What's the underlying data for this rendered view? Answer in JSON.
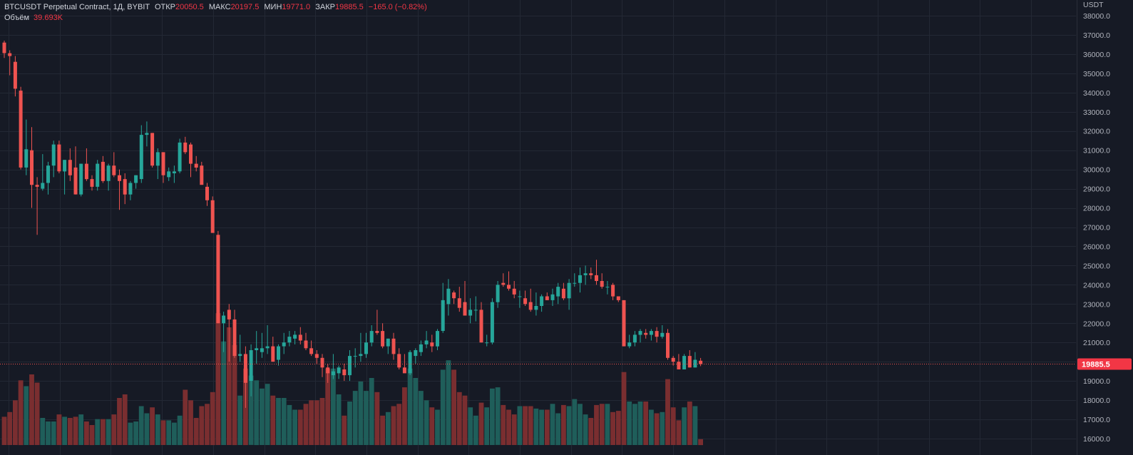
{
  "legend": {
    "symbol": "BTCUSDT Perpetual Contract, 1Д, BYBIT",
    "open_label": "ОТКР",
    "open": "20050.5",
    "high_label": "МАКС",
    "high": "20197.5",
    "low_label": "МИН",
    "low": "19771.0",
    "close_label": "ЗАКР",
    "close": "19885.5",
    "change": "−165.0 (−0.82%)",
    "volume_label": "Объём",
    "volume": "39.693K"
  },
  "axis_unit": "USDT",
  "colors": {
    "background": "#161a25",
    "grid": "#232834",
    "up": "#26a69a",
    "down": "#ef5350",
    "vol_up": "#1f5e5a",
    "vol_down": "#7a2e30",
    "axis_text": "#b2b5be",
    "price_line": "#ef5350"
  },
  "chart_data": {
    "type": "candlestick",
    "interval": "1D",
    "y_axis": {
      "min": 16000,
      "max": 38000,
      "step": 1000,
      "ticks": [
        "16000.0",
        "17000.0",
        "18000.0",
        "19000.0",
        "20000.0",
        "21000.0",
        "22000.0",
        "23000.0",
        "24000.0",
        "25000.0",
        "26000.0",
        "27000.0",
        "28000.0",
        "29000.0",
        "30000.0",
        "31000.0",
        "32000.0",
        "33000.0",
        "34000.0",
        "35000.0",
        "36000.0",
        "37000.0",
        "38000.0"
      ]
    },
    "last_price": "19885.5",
    "volume_scale": [
      0,
      1.0
    ],
    "candles": [
      {
        "o": 36600,
        "h": 36700,
        "l": 35800,
        "c": 36050,
        "v": 0.24
      },
      {
        "o": 36050,
        "h": 36200,
        "l": 34900,
        "c": 35900,
        "v": 0.28
      },
      {
        "o": 35600,
        "h": 35900,
        "l": 33800,
        "c": 34200,
        "v": 0.38
      },
      {
        "o": 34100,
        "h": 34300,
        "l": 30000,
        "c": 30100,
        "v": 0.55
      },
      {
        "o": 30100,
        "h": 32600,
        "l": 29700,
        "c": 31050,
        "v": 0.5
      },
      {
        "o": 31000,
        "h": 32200,
        "l": 28000,
        "c": 29200,
        "v": 0.6
      },
      {
        "o": 29200,
        "h": 29600,
        "l": 26600,
        "c": 29100,
        "v": 0.53
      },
      {
        "o": 29000,
        "h": 30800,
        "l": 28900,
        "c": 29300,
        "v": 0.23
      },
      {
        "o": 29300,
        "h": 30400,
        "l": 28700,
        "c": 30200,
        "v": 0.2
      },
      {
        "o": 30200,
        "h": 31500,
        "l": 29600,
        "c": 31300,
        "v": 0.2
      },
      {
        "o": 31300,
        "h": 31500,
        "l": 29800,
        "c": 29900,
        "v": 0.26
      },
      {
        "o": 29900,
        "h": 30500,
        "l": 28700,
        "c": 30500,
        "v": 0.24
      },
      {
        "o": 30500,
        "h": 31100,
        "l": 29400,
        "c": 29700,
        "v": 0.23
      },
      {
        "o": 30100,
        "h": 31200,
        "l": 28700,
        "c": 28700,
        "v": 0.24
      },
      {
        "o": 28700,
        "h": 30300,
        "l": 28600,
        "c": 30300,
        "v": 0.26
      },
      {
        "o": 30300,
        "h": 31100,
        "l": 29400,
        "c": 29500,
        "v": 0.2
      },
      {
        "o": 29500,
        "h": 29700,
        "l": 28900,
        "c": 29100,
        "v": 0.17
      },
      {
        "o": 29100,
        "h": 30500,
        "l": 28900,
        "c": 30300,
        "v": 0.22
      },
      {
        "o": 30400,
        "h": 30700,
        "l": 29300,
        "c": 29400,
        "v": 0.22
      },
      {
        "o": 29400,
        "h": 30300,
        "l": 28900,
        "c": 30200,
        "v": 0.22
      },
      {
        "o": 30200,
        "h": 30900,
        "l": 29600,
        "c": 29700,
        "v": 0.26
      },
      {
        "o": 29700,
        "h": 30000,
        "l": 27900,
        "c": 29400,
        "v": 0.4
      },
      {
        "o": 29500,
        "h": 29800,
        "l": 28200,
        "c": 28700,
        "v": 0.43
      },
      {
        "o": 28700,
        "h": 29400,
        "l": 28400,
        "c": 29300,
        "v": 0.19
      },
      {
        "o": 29300,
        "h": 29700,
        "l": 29000,
        "c": 29700,
        "v": 0.2
      },
      {
        "o": 29500,
        "h": 32300,
        "l": 29300,
        "c": 31800,
        "v": 0.33
      },
      {
        "o": 31800,
        "h": 32500,
        "l": 31200,
        "c": 31900,
        "v": 0.27
      },
      {
        "o": 31900,
        "h": 31900,
        "l": 30100,
        "c": 30200,
        "v": 0.32
      },
      {
        "o": 30200,
        "h": 31100,
        "l": 29500,
        "c": 30900,
        "v": 0.26
      },
      {
        "o": 30900,
        "h": 30900,
        "l": 29300,
        "c": 29700,
        "v": 0.21
      },
      {
        "o": 29600,
        "h": 30100,
        "l": 29400,
        "c": 29900,
        "v": 0.21
      },
      {
        "o": 29800,
        "h": 30200,
        "l": 29300,
        "c": 29900,
        "v": 0.19
      },
      {
        "o": 29900,
        "h": 31600,
        "l": 29800,
        "c": 31400,
        "v": 0.25
      },
      {
        "o": 31400,
        "h": 31700,
        "l": 30800,
        "c": 30900,
        "v": 0.47
      },
      {
        "o": 31300,
        "h": 31400,
        "l": 29600,
        "c": 30300,
        "v": 0.38
      },
      {
        "o": 30300,
        "h": 30700,
        "l": 29900,
        "c": 30100,
        "v": 0.23
      },
      {
        "o": 30200,
        "h": 30400,
        "l": 29300,
        "c": 29200,
        "v": 0.33
      },
      {
        "o": 29100,
        "h": 29300,
        "l": 28100,
        "c": 28400,
        "v": 0.35
      },
      {
        "o": 28400,
        "h": 28600,
        "l": 26700,
        "c": 26700,
        "v": 0.45
      },
      {
        "o": 26600,
        "h": 26800,
        "l": 22000,
        "c": 22000,
        "v": 1.12
      },
      {
        "o": 22000,
        "h": 22600,
        "l": 20500,
        "c": 22400,
        "v": 0.88
      },
      {
        "o": 22700,
        "h": 23000,
        "l": 20000,
        "c": 22200,
        "v": 1.0
      },
      {
        "o": 22200,
        "h": 22700,
        "l": 20200,
        "c": 20300,
        "v": 0.85
      },
      {
        "o": 20300,
        "h": 21400,
        "l": 20000,
        "c": 20400,
        "v": 0.42
      },
      {
        "o": 20400,
        "h": 20800,
        "l": 17600,
        "c": 18900,
        "v": 0.65
      },
      {
        "o": 19000,
        "h": 20900,
        "l": 18200,
        "c": 20600,
        "v": 0.59
      },
      {
        "o": 20600,
        "h": 21600,
        "l": 19900,
        "c": 20700,
        "v": 0.55
      },
      {
        "o": 20500,
        "h": 21500,
        "l": 20200,
        "c": 20700,
        "v": 0.48
      },
      {
        "o": 20700,
        "h": 21900,
        "l": 20400,
        "c": 20800,
        "v": 0.52
      },
      {
        "o": 20800,
        "h": 21300,
        "l": 20000,
        "c": 20000,
        "v": 0.42
      },
      {
        "o": 20100,
        "h": 20900,
        "l": 19800,
        "c": 20800,
        "v": 0.4
      },
      {
        "o": 20800,
        "h": 21500,
        "l": 20400,
        "c": 21000,
        "v": 0.4
      },
      {
        "o": 21000,
        "h": 21600,
        "l": 20800,
        "c": 21300,
        "v": 0.34
      },
      {
        "o": 21200,
        "h": 21600,
        "l": 20900,
        "c": 21400,
        "v": 0.3
      },
      {
        "o": 21400,
        "h": 21800,
        "l": 20900,
        "c": 21100,
        "v": 0.3
      },
      {
        "o": 21100,
        "h": 21500,
        "l": 20600,
        "c": 20700,
        "v": 0.35
      },
      {
        "o": 20700,
        "h": 21100,
        "l": 20300,
        "c": 20400,
        "v": 0.38
      },
      {
        "o": 20400,
        "h": 20600,
        "l": 19900,
        "c": 20200,
        "v": 0.38
      },
      {
        "o": 20200,
        "h": 20400,
        "l": 19200,
        "c": 19700,
        "v": 0.4
      },
      {
        "o": 19700,
        "h": 19900,
        "l": 18900,
        "c": 19400,
        "v": 0.65
      },
      {
        "o": 19300,
        "h": 20400,
        "l": 19100,
        "c": 19500,
        "v": 0.65
      },
      {
        "o": 19400,
        "h": 19800,
        "l": 19100,
        "c": 19700,
        "v": 0.43
      },
      {
        "o": 19600,
        "h": 19900,
        "l": 19000,
        "c": 19300,
        "v": 0.25
      },
      {
        "o": 19300,
        "h": 20600,
        "l": 19000,
        "c": 20300,
        "v": 0.37
      },
      {
        "o": 20300,
        "h": 20700,
        "l": 19700,
        "c": 20300,
        "v": 0.46
      },
      {
        "o": 20300,
        "h": 21500,
        "l": 20000,
        "c": 20400,
        "v": 0.54
      },
      {
        "o": 20400,
        "h": 21500,
        "l": 20200,
        "c": 21000,
        "v": 0.46
      },
      {
        "o": 21000,
        "h": 21900,
        "l": 20800,
        "c": 21600,
        "v": 0.57
      },
      {
        "o": 21600,
        "h": 22700,
        "l": 21400,
        "c": 21500,
        "v": 0.45
      },
      {
        "o": 21600,
        "h": 22000,
        "l": 20700,
        "c": 20800,
        "v": 0.25
      },
      {
        "o": 20800,
        "h": 21200,
        "l": 20400,
        "c": 21200,
        "v": 0.28
      },
      {
        "o": 21200,
        "h": 21500,
        "l": 20100,
        "c": 20400,
        "v": 0.33
      },
      {
        "o": 20400,
        "h": 20700,
        "l": 19600,
        "c": 19700,
        "v": 0.35
      },
      {
        "o": 19700,
        "h": 20400,
        "l": 19500,
        "c": 19400,
        "v": 0.49
      },
      {
        "o": 19400,
        "h": 20600,
        "l": 19300,
        "c": 20500,
        "v": 0.65
      },
      {
        "o": 20300,
        "h": 20700,
        "l": 19900,
        "c": 20600,
        "v": 0.57
      },
      {
        "o": 20500,
        "h": 21100,
        "l": 20300,
        "c": 20900,
        "v": 0.46
      },
      {
        "o": 20900,
        "h": 21600,
        "l": 20700,
        "c": 21100,
        "v": 0.38
      },
      {
        "o": 21000,
        "h": 21400,
        "l": 20500,
        "c": 20800,
        "v": 0.32
      },
      {
        "o": 20800,
        "h": 21700,
        "l": 20600,
        "c": 21600,
        "v": 0.3
      },
      {
        "o": 21600,
        "h": 24100,
        "l": 21500,
        "c": 23200,
        "v": 0.64
      },
      {
        "o": 23000,
        "h": 24300,
        "l": 22400,
        "c": 23800,
        "v": 0.72
      },
      {
        "o": 23600,
        "h": 23700,
        "l": 23000,
        "c": 23300,
        "v": 0.64
      },
      {
        "o": 23300,
        "h": 23900,
        "l": 22600,
        "c": 22800,
        "v": 0.45
      },
      {
        "o": 23100,
        "h": 24200,
        "l": 22500,
        "c": 22400,
        "v": 0.42
      },
      {
        "o": 22400,
        "h": 23300,
        "l": 22000,
        "c": 22700,
        "v": 0.32
      },
      {
        "o": 22700,
        "h": 23400,
        "l": 22100,
        "c": 22700,
        "v": 0.25
      },
      {
        "o": 22700,
        "h": 23100,
        "l": 21000,
        "c": 21000,
        "v": 0.36
      },
      {
        "o": 21000,
        "h": 21400,
        "l": 20800,
        "c": 21000,
        "v": 0.32
      },
      {
        "o": 21000,
        "h": 23300,
        "l": 20900,
        "c": 23100,
        "v": 0.48
      },
      {
        "o": 23100,
        "h": 24200,
        "l": 22800,
        "c": 24000,
        "v": 0.49
      },
      {
        "o": 24100,
        "h": 24600,
        "l": 23900,
        "c": 24000,
        "v": 0.34
      },
      {
        "o": 24000,
        "h": 24700,
        "l": 23700,
        "c": 23800,
        "v": 0.3
      },
      {
        "o": 23800,
        "h": 24200,
        "l": 23300,
        "c": 23500,
        "v": 0.26
      },
      {
        "o": 23400,
        "h": 23700,
        "l": 22800,
        "c": 23400,
        "v": 0.33
      },
      {
        "o": 23300,
        "h": 23700,
        "l": 22900,
        "c": 23000,
        "v": 0.33
      },
      {
        "o": 23100,
        "h": 23800,
        "l": 22600,
        "c": 22700,
        "v": 0.33
      },
      {
        "o": 22700,
        "h": 23600,
        "l": 22400,
        "c": 22900,
        "v": 0.31
      },
      {
        "o": 22900,
        "h": 23500,
        "l": 22600,
        "c": 23400,
        "v": 0.3
      },
      {
        "o": 23400,
        "h": 23600,
        "l": 23200,
        "c": 23200,
        "v": 0.3
      },
      {
        "o": 23200,
        "h": 23800,
        "l": 22900,
        "c": 23500,
        "v": 0.35
      },
      {
        "o": 23400,
        "h": 24100,
        "l": 23000,
        "c": 23900,
        "v": 0.27
      },
      {
        "o": 23800,
        "h": 24100,
        "l": 23200,
        "c": 23300,
        "v": 0.34
      },
      {
        "o": 23300,
        "h": 24300,
        "l": 22700,
        "c": 24100,
        "v": 0.33
      },
      {
        "o": 24100,
        "h": 24600,
        "l": 23900,
        "c": 24100,
        "v": 0.39
      },
      {
        "o": 24100,
        "h": 24900,
        "l": 23600,
        "c": 24500,
        "v": 0.35
      },
      {
        "o": 24500,
        "h": 25000,
        "l": 24000,
        "c": 24600,
        "v": 0.26
      },
      {
        "o": 24600,
        "h": 24900,
        "l": 24300,
        "c": 24500,
        "v": 0.23
      },
      {
        "o": 24500,
        "h": 25300,
        "l": 24000,
        "c": 24200,
        "v": 0.34
      },
      {
        "o": 24200,
        "h": 24600,
        "l": 23800,
        "c": 23900,
        "v": 0.35
      },
      {
        "o": 23900,
        "h": 24200,
        "l": 23500,
        "c": 23900,
        "v": 0.35
      },
      {
        "o": 24000,
        "h": 24100,
        "l": 23200,
        "c": 23400,
        "v": 0.28
      },
      {
        "o": 23400,
        "h": 23400,
        "l": 23100,
        "c": 23200,
        "v": 0.29
      },
      {
        "o": 23200,
        "h": 23200,
        "l": 20800,
        "c": 20800,
        "v": 0.62
      },
      {
        "o": 20800,
        "h": 21400,
        "l": 20700,
        "c": 21000,
        "v": 0.37
      },
      {
        "o": 21000,
        "h": 21600,
        "l": 20800,
        "c": 21400,
        "v": 0.35
      },
      {
        "o": 21400,
        "h": 21700,
        "l": 21000,
        "c": 21600,
        "v": 0.37
      },
      {
        "o": 21500,
        "h": 21700,
        "l": 21200,
        "c": 21400,
        "v": 0.37
      },
      {
        "o": 21400,
        "h": 21700,
        "l": 21100,
        "c": 21600,
        "v": 0.3
      },
      {
        "o": 21600,
        "h": 21800,
        "l": 21000,
        "c": 21300,
        "v": 0.27
      },
      {
        "o": 21300,
        "h": 21900,
        "l": 21200,
        "c": 21500,
        "v": 0.28
      },
      {
        "o": 21500,
        "h": 21700,
        "l": 20100,
        "c": 20200,
        "v": 0.56
      },
      {
        "o": 20200,
        "h": 20300,
        "l": 19800,
        "c": 20000,
        "v": 0.32
      },
      {
        "o": 20000,
        "h": 20400,
        "l": 19700,
        "c": 19600,
        "v": 0.21
      },
      {
        "o": 19600,
        "h": 20400,
        "l": 19600,
        "c": 20300,
        "v": 0.32
      },
      {
        "o": 20300,
        "h": 20600,
        "l": 19700,
        "c": 19700,
        "v": 0.37
      },
      {
        "o": 19700,
        "h": 20500,
        "l": 19700,
        "c": 20100,
        "v": 0.33
      },
      {
        "o": 20050.5,
        "h": 20197.5,
        "l": 19771.0,
        "c": 19885.5,
        "v": 0.05
      }
    ]
  }
}
